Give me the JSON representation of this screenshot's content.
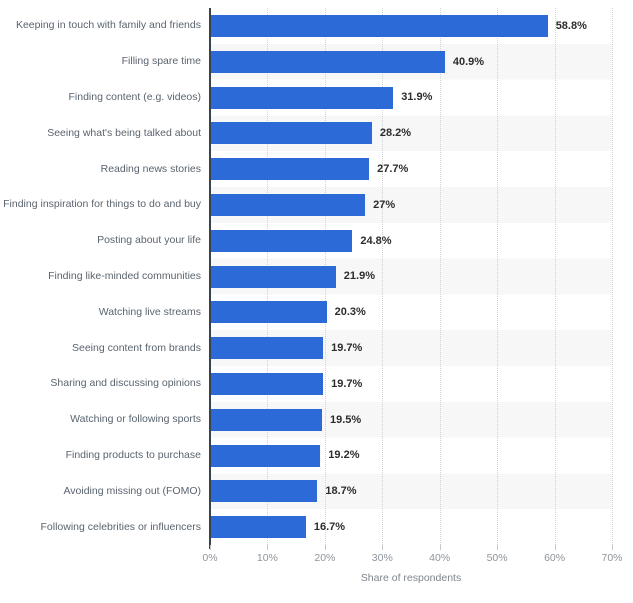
{
  "chart_data": {
    "type": "bar",
    "orientation": "horizontal",
    "title": "",
    "xlabel": "Share of respondents",
    "ylabel": "",
    "xlim": [
      0,
      70
    ],
    "grid": "vertical-dotted",
    "legend": "none",
    "bar_color": "#2c6bd7",
    "stripe_color": "#f7f7f8",
    "categories": [
      "Keeping in touch with family and friends",
      "Filling spare time",
      "Finding content (e.g. videos)",
      "Seeing what's being talked about",
      "Reading news stories",
      "Finding inspiration for things to do and buy",
      "Posting about your life",
      "Finding like-minded communities",
      "Watching live streams",
      "Seeing content from brands",
      "Sharing and discussing opinions",
      "Watching or following sports",
      "Finding products to purchase",
      "Avoiding missing out (FOMO)",
      "Following celebrities or influencers"
    ],
    "values": [
      58.8,
      40.9,
      31.9,
      28.2,
      27.7,
      27,
      24.8,
      21.9,
      20.3,
      19.7,
      19.7,
      19.5,
      19.2,
      18.7,
      16.7
    ],
    "value_labels": [
      "58.8%",
      "40.9%",
      "31.9%",
      "28.2%",
      "27.7%",
      "27%",
      "24.8%",
      "21.9%",
      "20.3%",
      "19.7%",
      "19.7%",
      "19.5%",
      "19.2%",
      "18.7%",
      "16.7%"
    ],
    "x_ticks": [
      "0%",
      "10%",
      "20%",
      "30%",
      "40%",
      "50%",
      "60%",
      "70%"
    ],
    "x_tick_values": [
      0,
      10,
      20,
      30,
      40,
      50,
      60,
      70
    ]
  }
}
